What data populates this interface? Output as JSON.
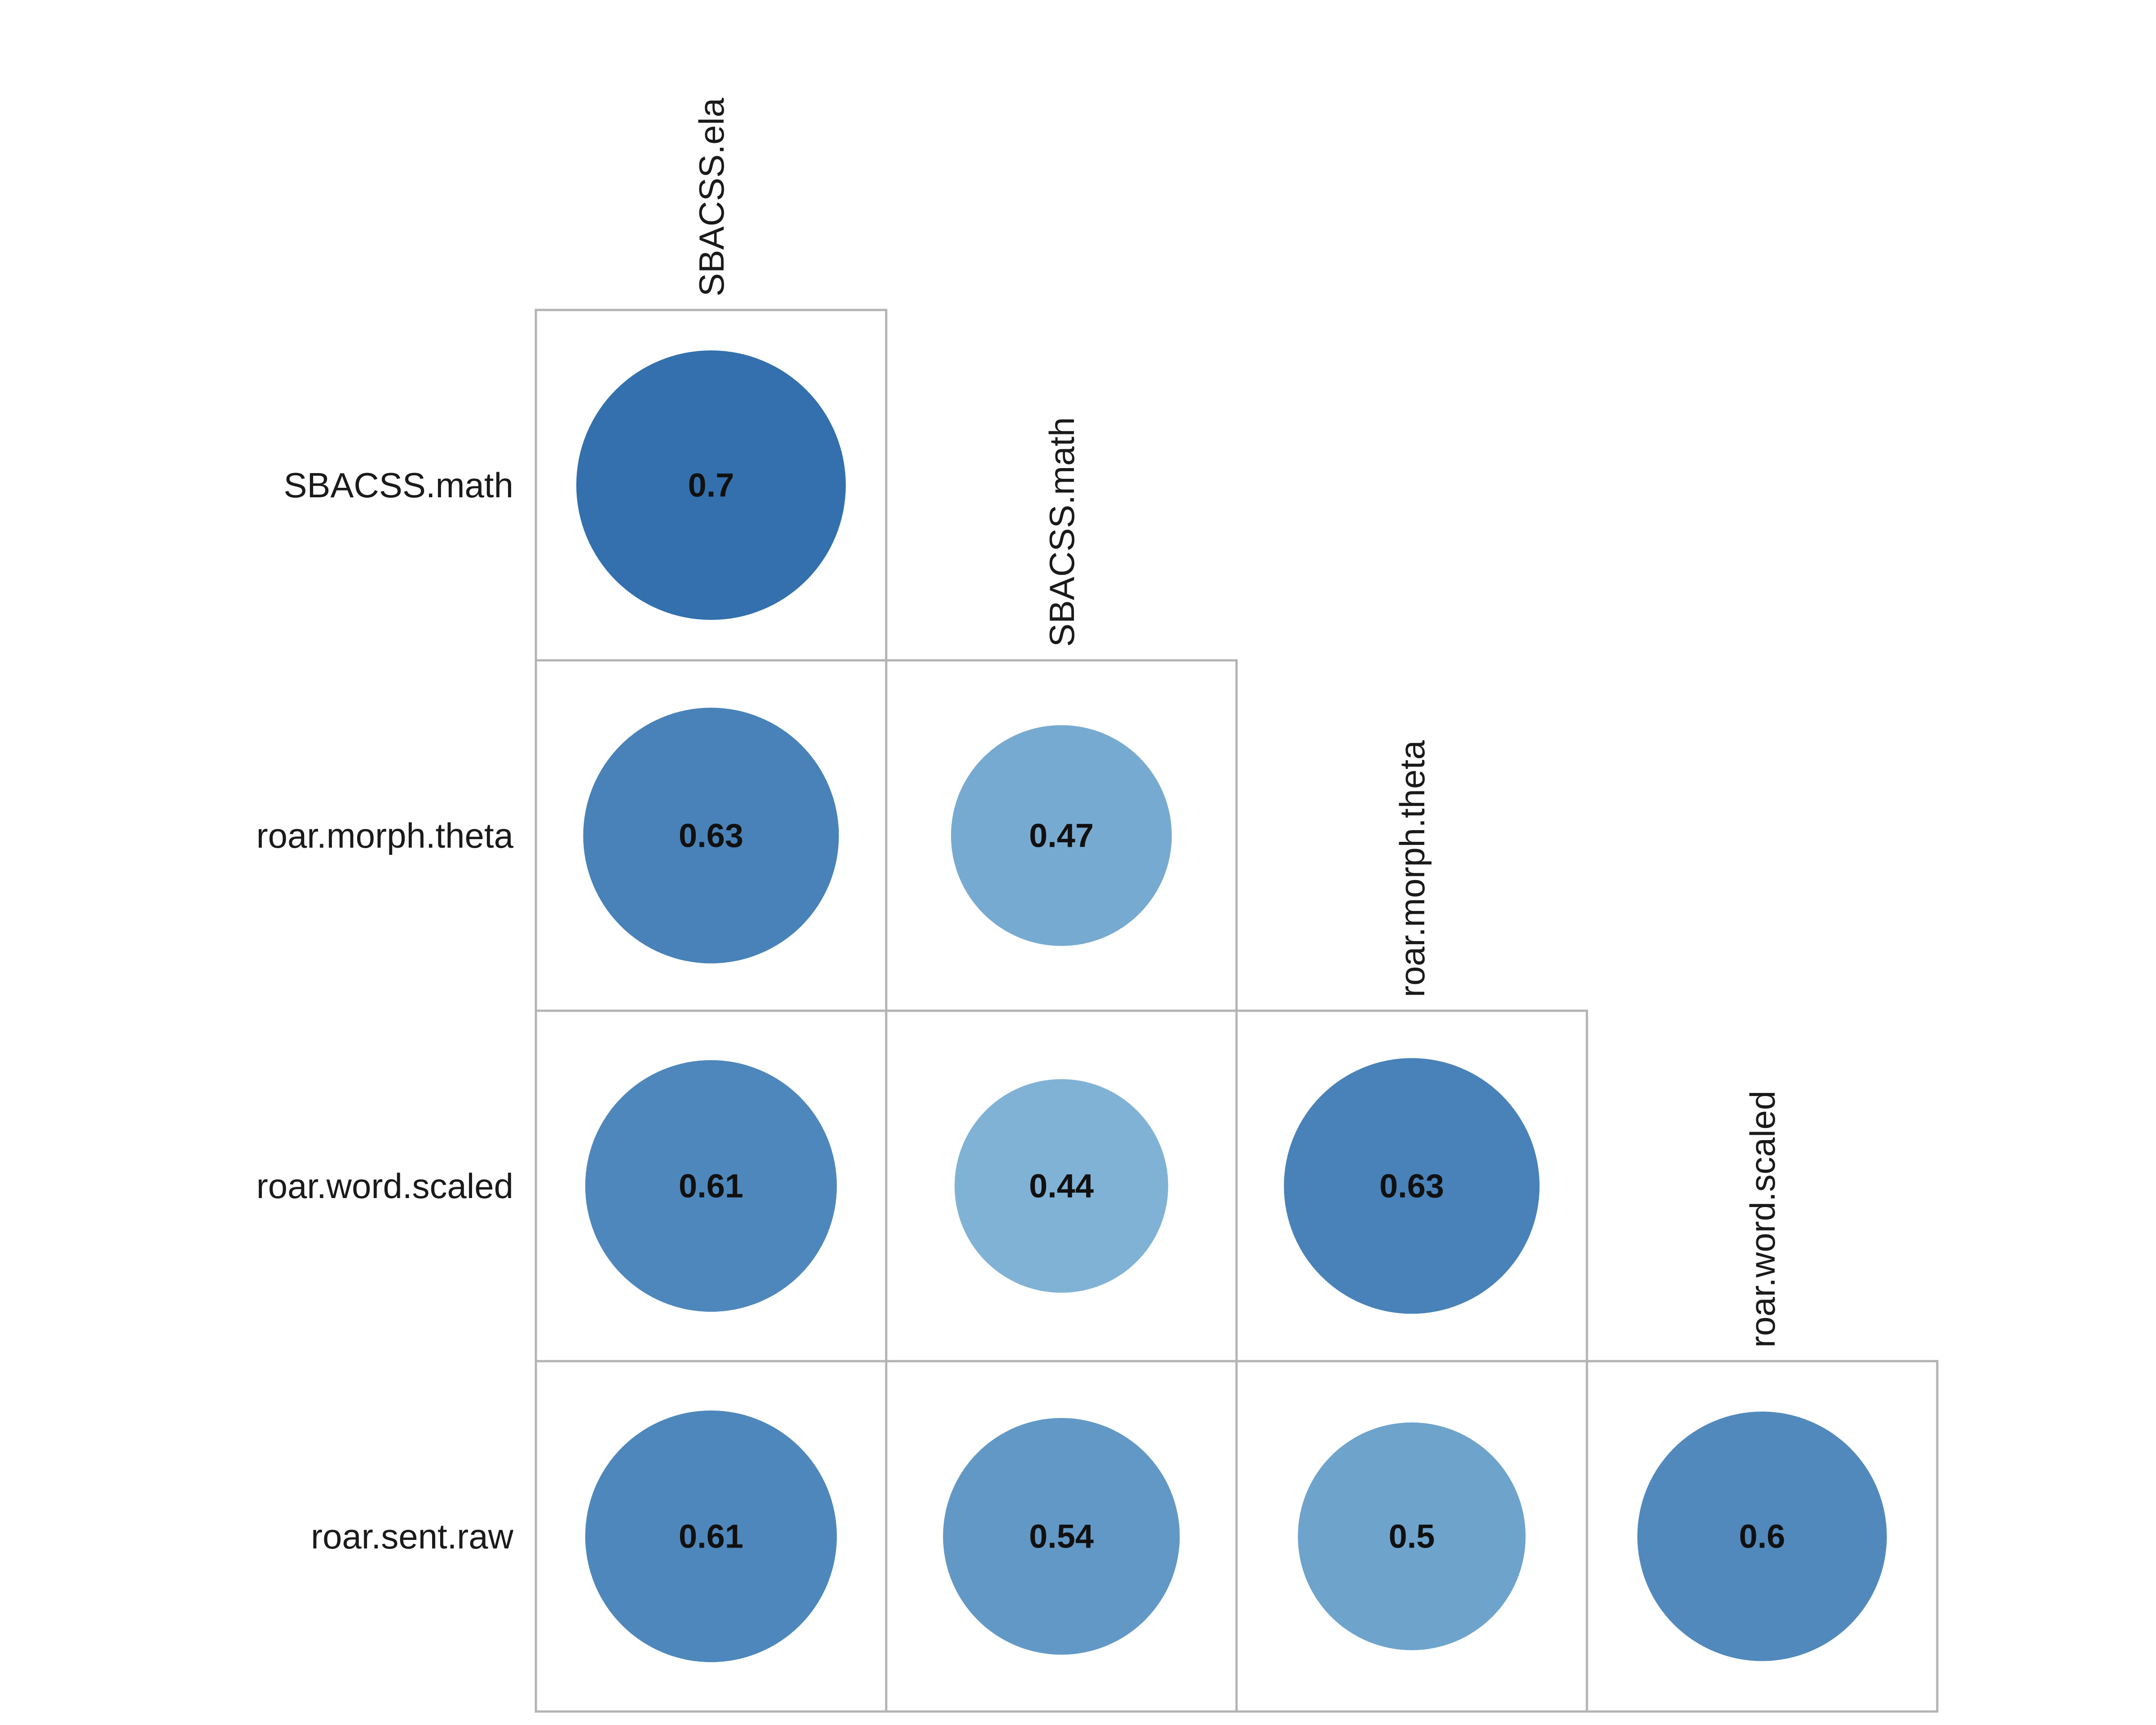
{
  "chart_data": {
    "type": "heatmap",
    "subtype": "lower-triangular correlation matrix (circles)",
    "title": "",
    "row_labels": [
      "SBACSS.math",
      "roar.morph.theta",
      "roar.word.scaled",
      "roar.sent.raw"
    ],
    "col_labels": [
      "SBACSS.ela",
      "SBACSS.math",
      "roar.morph.theta",
      "roar.word.scaled"
    ],
    "values": [
      [
        0.7,
        null,
        null,
        null
      ],
      [
        0.63,
        0.47,
        null,
        null
      ],
      [
        0.61,
        0.44,
        0.63,
        null
      ],
      [
        0.61,
        0.54,
        0.5,
        0.6
      ]
    ],
    "value_text": [
      [
        "0.7",
        "",
        "",
        ""
      ],
      [
        "0.63",
        "0.47",
        "",
        ""
      ],
      [
        "0.61",
        "0.44",
        "0.63",
        ""
      ],
      [
        "0.61",
        "0.54",
        "0.5",
        "0.6"
      ]
    ],
    "value_range": [
      0.4,
      0.75
    ],
    "color_low": "#8cbcdb",
    "color_high": "#2463a5",
    "grid": true,
    "legend": "none"
  }
}
